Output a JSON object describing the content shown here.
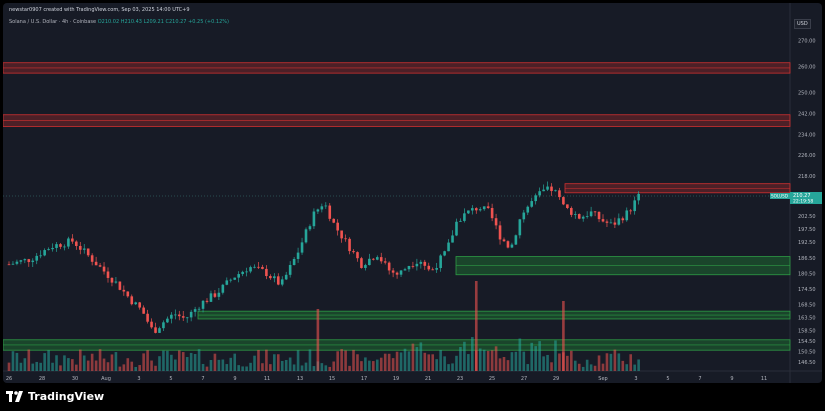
{
  "header": {
    "publisher": "newstar0907 created with TradingView.com, Sep 03, 2025 14:00 UTC+9"
  },
  "legend": {
    "symbol": "Solana / U.S. Dollar · 4h · Coinbase",
    "o": "O210.02",
    "h": "H210.43",
    "l": "L209.21",
    "c": "C210.27",
    "change": "+0.25 (+0.12%)"
  },
  "currency": "USD",
  "price_tag": {
    "ticker": "SOLUSD",
    "price": "210.27",
    "countdown": "22:19:58"
  },
  "brand": "TradingView",
  "colors": {
    "background": "#171b26",
    "up": "#26a69a",
    "down": "#ef5350",
    "resistance": "#b02a2a",
    "support": "#1f7a34"
  },
  "chart_data": {
    "type": "candlestick",
    "y_ticks": [
      "270.00",
      "260.00",
      "250.00",
      "242.00",
      "234.00",
      "226.00",
      "218.00",
      "210.00",
      "202.50",
      "197.50",
      "192.50",
      "186.50",
      "180.50",
      "174.50",
      "168.50",
      "163.50",
      "158.50",
      "154.50",
      "150.50",
      "146.50"
    ],
    "x_ticks": [
      "26",
      "28",
      "30",
      "Aug",
      "3",
      "5",
      "7",
      "9",
      "11",
      "13",
      "15",
      "17",
      "19",
      "21",
      "23",
      "25",
      "27",
      "29",
      "Sep",
      "3",
      "5",
      "7",
      "9",
      "11"
    ],
    "ylim": [
      143,
      276
    ],
    "last_price": 210.27,
    "zones": [
      {
        "kind": "resistance",
        "from": 257.5,
        "to": 261.5
      },
      {
        "kind": "resistance",
        "from": 237,
        "to": 241.5
      },
      {
        "kind": "resistance",
        "from": 211.5,
        "to": 215
      },
      {
        "kind": "support",
        "from": 180,
        "to": 187
      },
      {
        "kind": "support",
        "from": 163,
        "to": 166
      },
      {
        "kind": "support",
        "from": 151,
        "to": 155
      }
    ],
    "price_path": [
      [
        0,
        184
      ],
      [
        4,
        186
      ],
      [
        8,
        191
      ],
      [
        12,
        193
      ],
      [
        14,
        189
      ],
      [
        17,
        183
      ],
      [
        20,
        177
      ],
      [
        23,
        170
      ],
      [
        25,
        166
      ],
      [
        27,
        158
      ],
      [
        29,
        162
      ],
      [
        31,
        165
      ],
      [
        33,
        163
      ],
      [
        36,
        169
      ],
      [
        39,
        173
      ],
      [
        42,
        179
      ],
      [
        45,
        183
      ],
      [
        48,
        181
      ],
      [
        51,
        176
      ],
      [
        54,
        188
      ],
      [
        57,
        203
      ],
      [
        59,
        208
      ],
      [
        61,
        199
      ],
      [
        64,
        190
      ],
      [
        66,
        184
      ],
      [
        69,
        188
      ],
      [
        71,
        182
      ],
      [
        73,
        180
      ],
      [
        75,
        184
      ],
      [
        77,
        186
      ],
      [
        79,
        181
      ],
      [
        82,
        189
      ],
      [
        84,
        201
      ],
      [
        86,
        204
      ],
      [
        88,
        206
      ],
      [
        90,
        204
      ],
      [
        92,
        195
      ],
      [
        94,
        190
      ],
      [
        96,
        203
      ],
      [
        98,
        208
      ],
      [
        100,
        212
      ],
      [
        102,
        213
      ],
      [
        104,
        206
      ],
      [
        107,
        202
      ],
      [
        109,
        204
      ],
      [
        111,
        201
      ],
      [
        113,
        199
      ],
      [
        116,
        204
      ],
      [
        118,
        210
      ]
    ]
  }
}
